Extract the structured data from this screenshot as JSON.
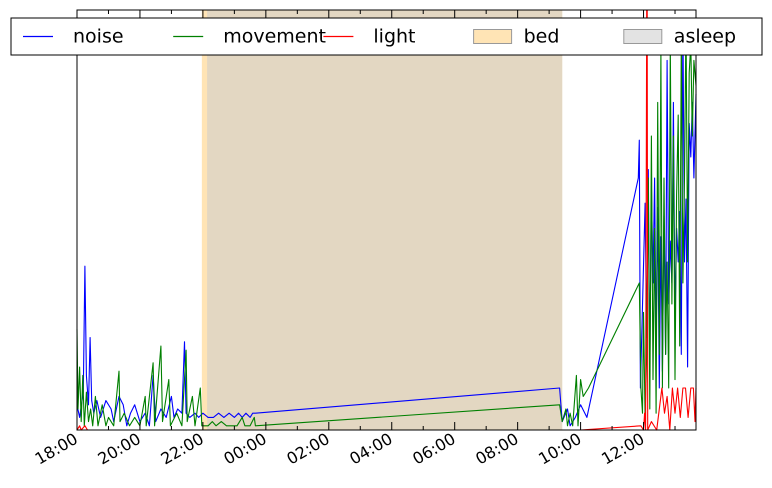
{
  "chart_data": {
    "type": "line",
    "title": "",
    "xlabel": "",
    "ylabel": "",
    "x_range": [
      "18:00",
      "13:40"
    ],
    "y_range": [
      0,
      100
    ],
    "y_ticks_labeled": false,
    "grid": false,
    "legend": {
      "placement": "top",
      "entries": [
        "noise",
        "movement",
        "light",
        "bed",
        "asleep"
      ]
    },
    "x_tick_labels": [
      "18:00",
      "20:00",
      "22:00",
      "00:00",
      "02:00",
      "04:00",
      "06:00",
      "08:00",
      "10:00",
      "12:00"
    ],
    "x_ticks": [
      "18:00",
      "20:00",
      "22:00",
      "00:00",
      "02:00",
      "04:00",
      "06:00",
      "08:00",
      "10:00",
      "12:00"
    ],
    "bands": [
      {
        "name": "bed",
        "start": "21:58",
        "end": "09:25",
        "color": "#ffe4b5"
      },
      {
        "name": "asleep",
        "start": "22:08",
        "end": "09:25",
        "color": "#cccccc"
      }
    ],
    "series": [
      {
        "name": "noise",
        "color": "#0000ff",
        "points": [
          [
            "18:00",
            6
          ],
          [
            "18:05",
            3
          ],
          [
            "18:12",
            9
          ],
          [
            "18:15",
            39
          ],
          [
            "18:18",
            13
          ],
          [
            "18:22",
            6
          ],
          [
            "18:25",
            22
          ],
          [
            "18:28",
            7
          ],
          [
            "18:32",
            4
          ],
          [
            "18:38",
            7
          ],
          [
            "18:45",
            3
          ],
          [
            "18:55",
            7
          ],
          [
            "19:05",
            5
          ],
          [
            "19:10",
            2
          ],
          [
            "19:20",
            8
          ],
          [
            "19:28",
            6
          ],
          [
            "19:35",
            1
          ],
          [
            "19:42",
            4
          ],
          [
            "19:50",
            6
          ],
          [
            "20:00",
            2
          ],
          [
            "20:10",
            4
          ],
          [
            "20:18",
            1
          ],
          [
            "20:25",
            13
          ],
          [
            "20:30",
            2
          ],
          [
            "20:40",
            5
          ],
          [
            "20:50",
            3
          ],
          [
            "21:00",
            8
          ],
          [
            "21:05",
            3
          ],
          [
            "21:12",
            5
          ],
          [
            "21:20",
            4
          ],
          [
            "21:25",
            21
          ],
          [
            "21:28",
            4
          ],
          [
            "21:35",
            3
          ],
          [
            "21:45",
            4
          ],
          [
            "21:52",
            3
          ],
          [
            "22:00",
            4
          ],
          [
            "22:10",
            3
          ],
          [
            "22:20",
            3
          ],
          [
            "22:30",
            4
          ],
          [
            "22:40",
            3
          ],
          [
            "22:50",
            4
          ],
          [
            "23:00",
            3
          ],
          [
            "23:08",
            4
          ],
          [
            "23:15",
            3
          ],
          [
            "23:22",
            4
          ],
          [
            "23:30",
            3
          ],
          [
            "23:35",
            4
          ],
          [
            "23:40",
            4
          ],
          [
            "09:20",
            10
          ],
          [
            "09:25",
            2
          ],
          [
            "09:35",
            5
          ],
          [
            "09:40",
            1
          ],
          [
            "09:50",
            3
          ],
          [
            "10:00",
            6
          ],
          [
            "10:12",
            3
          ],
          [
            "11:50",
            60
          ],
          [
            "11:52",
            69
          ],
          [
            "11:54",
            10
          ],
          [
            "11:57",
            25
          ],
          [
            "12:00",
            39
          ],
          [
            "12:03",
            54
          ],
          [
            "12:06",
            22
          ],
          [
            "12:09",
            62
          ],
          [
            "12:12",
            15
          ],
          [
            "12:15",
            58
          ],
          [
            "12:18",
            35
          ],
          [
            "12:21",
            60
          ],
          [
            "12:24",
            20
          ],
          [
            "12:27",
            53
          ],
          [
            "12:30",
            10
          ],
          [
            "12:33",
            46
          ],
          [
            "12:36",
            14
          ],
          [
            "12:39",
            51
          ],
          [
            "12:42",
            18
          ],
          [
            "12:45",
            88
          ],
          [
            "12:48",
            30
          ],
          [
            "12:51",
            45
          ],
          [
            "12:54",
            35
          ],
          [
            "12:57",
            78
          ],
          [
            "13:00",
            26
          ],
          [
            "13:03",
            48
          ],
          [
            "13:06",
            40
          ],
          [
            "13:09",
            52
          ],
          [
            "13:12",
            18
          ],
          [
            "13:15",
            98
          ],
          [
            "13:18",
            40
          ],
          [
            "13:21",
            55
          ],
          [
            "13:24",
            15
          ],
          [
            "13:27",
            73
          ],
          [
            "13:30",
            65
          ],
          [
            "13:33",
            78
          ],
          [
            "13:36",
            60
          ],
          [
            "13:40",
            80
          ]
        ]
      },
      {
        "name": "movement",
        "color": "#008000",
        "points": [
          [
            "18:00",
            24
          ],
          [
            "18:02",
            5
          ],
          [
            "18:05",
            15
          ],
          [
            "18:08",
            2
          ],
          [
            "18:11",
            13
          ],
          [
            "18:14",
            1
          ],
          [
            "18:18",
            9
          ],
          [
            "18:22",
            2
          ],
          [
            "18:26",
            5
          ],
          [
            "18:30",
            1
          ],
          [
            "18:35",
            8
          ],
          [
            "18:40",
            1
          ],
          [
            "18:48",
            6
          ],
          [
            "18:55",
            1
          ],
          [
            "19:00",
            3
          ],
          [
            "19:10",
            1
          ],
          [
            "19:20",
            14
          ],
          [
            "19:22",
            2
          ],
          [
            "19:30",
            4
          ],
          [
            "19:40",
            1
          ],
          [
            "19:50",
            3
          ],
          [
            "20:00",
            1
          ],
          [
            "20:10",
            8
          ],
          [
            "20:12",
            1
          ],
          [
            "20:25",
            16
          ],
          [
            "20:28",
            1
          ],
          [
            "20:40",
            20
          ],
          [
            "20:43",
            2
          ],
          [
            "20:55",
            12
          ],
          [
            "20:58",
            1
          ],
          [
            "21:10",
            4
          ],
          [
            "21:20",
            1
          ],
          [
            "21:28",
            19
          ],
          [
            "21:30",
            2
          ],
          [
            "21:40",
            8
          ],
          [
            "21:45",
            1
          ],
          [
            "21:55",
            10
          ],
          [
            "21:58",
            1
          ],
          [
            "22:10",
            1
          ],
          [
            "22:18",
            2
          ],
          [
            "22:25",
            1
          ],
          [
            "22:35",
            2
          ],
          [
            "22:45",
            1
          ],
          [
            "22:55",
            1
          ],
          [
            "23:05",
            1
          ],
          [
            "23:15",
            3
          ],
          [
            "23:20",
            1
          ],
          [
            "23:30",
            1
          ],
          [
            "23:38",
            3
          ],
          [
            "23:40",
            1
          ],
          [
            "09:20",
            6
          ],
          [
            "09:25",
            2
          ],
          [
            "09:32",
            5
          ],
          [
            "09:35",
            1
          ],
          [
            "09:40",
            4
          ],
          [
            "09:45",
            1
          ],
          [
            "09:52",
            13
          ],
          [
            "09:55",
            1
          ],
          [
            "10:00",
            12
          ],
          [
            "10:05",
            8
          ],
          [
            "10:15",
            10
          ],
          [
            "11:52",
            35
          ],
          [
            "11:55",
            10
          ],
          [
            "11:58",
            4
          ],
          [
            "12:00",
            28
          ],
          [
            "12:03",
            3
          ],
          [
            "12:06",
            18
          ],
          [
            "12:09",
            60
          ],
          [
            "12:12",
            5
          ],
          [
            "12:15",
            70
          ],
          [
            "12:18",
            12
          ],
          [
            "12:21",
            48
          ],
          [
            "12:24",
            4
          ],
          [
            "12:27",
            78
          ],
          [
            "12:30",
            18
          ],
          [
            "12:33",
            90
          ],
          [
            "12:36",
            10
          ],
          [
            "12:39",
            60
          ],
          [
            "12:42",
            18
          ],
          [
            "12:45",
            40
          ],
          [
            "12:48",
            10
          ],
          [
            "12:51",
            92
          ],
          [
            "12:54",
            30
          ],
          [
            "12:57",
            70
          ],
          [
            "13:00",
            12
          ],
          [
            "13:03",
            56
          ],
          [
            "13:06",
            75
          ],
          [
            "13:09",
            20
          ],
          [
            "13:12",
            93
          ],
          [
            "13:15",
            35
          ],
          [
            "13:18",
            60
          ],
          [
            "13:21",
            98
          ],
          [
            "13:24",
            40
          ],
          [
            "13:27",
            85
          ],
          [
            "13:30",
            92
          ],
          [
            "13:33",
            70
          ],
          [
            "13:36",
            88
          ],
          [
            "13:40",
            82
          ]
        ]
      },
      {
        "name": "light",
        "color": "#ff0000",
        "points": [
          [
            "18:00",
            0
          ],
          [
            "18:05",
            1
          ],
          [
            "18:08",
            0
          ],
          [
            "18:15",
            1
          ],
          [
            "18:20",
            0
          ],
          [
            "20:00",
            0
          ],
          [
            "22:00",
            0
          ],
          [
            "10:00",
            0
          ],
          [
            "11:55",
            1
          ],
          [
            "12:00",
            0
          ],
          [
            "12:02",
            4
          ],
          [
            "12:04",
            0
          ],
          [
            "12:06",
            100
          ],
          [
            "12:07",
            100
          ],
          [
            "12:08",
            0
          ],
          [
            "12:15",
            2
          ],
          [
            "12:25",
            0
          ],
          [
            "12:35",
            10
          ],
          [
            "12:40",
            4
          ],
          [
            "12:45",
            8
          ],
          [
            "12:50",
            0
          ],
          [
            "12:55",
            10
          ],
          [
            "13:00",
            4
          ],
          [
            "13:05",
            10
          ],
          [
            "13:10",
            3
          ],
          [
            "13:15",
            10
          ],
          [
            "13:20",
            10
          ],
          [
            "13:25",
            3
          ],
          [
            "13:30",
            10
          ],
          [
            "13:35",
            10
          ],
          [
            "13:38",
            2
          ],
          [
            "13:40",
            10
          ]
        ]
      }
    ]
  }
}
